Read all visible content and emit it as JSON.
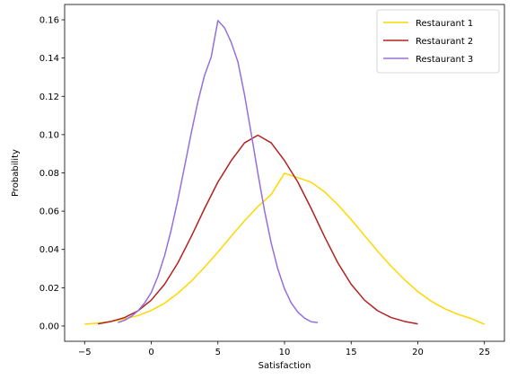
{
  "chart_data": {
    "type": "line",
    "title": "",
    "xlabel": "Satisfaction",
    "ylabel": "Probability",
    "xlim": [
      -6.5,
      26.5
    ],
    "ylim": [
      -0.008,
      0.168
    ],
    "xticks": [
      -5,
      0,
      5,
      10,
      15,
      20,
      25
    ],
    "xtick_labels": [
      "−5",
      "0",
      "5",
      "10",
      "15",
      "20",
      "25"
    ],
    "yticks": [
      0.0,
      0.02,
      0.04,
      0.06,
      0.08,
      0.1,
      0.12,
      0.14,
      0.16
    ],
    "ytick_labels": [
      "0.00",
      "0.02",
      "0.04",
      "0.06",
      "0.08",
      "0.10",
      "0.12",
      "0.14",
      "0.16"
    ],
    "grid": false,
    "legend_position": "top-right",
    "series": [
      {
        "name": "Restaurant 1",
        "color": "#FFD700",
        "x": [
          -5,
          -4,
          -3,
          -2,
          -1,
          0,
          1,
          2,
          3,
          4,
          5,
          6,
          7,
          8,
          9,
          10,
          11,
          12,
          13,
          14,
          15,
          16,
          17,
          18,
          19,
          20,
          21,
          22,
          23,
          24,
          25
        ],
        "y": [
          0.0009,
          0.0015,
          0.0024,
          0.0037,
          0.0054,
          0.0081,
          0.0119,
          0.0171,
          0.0234,
          0.0307,
          0.0386,
          0.0469,
          0.055,
          0.0624,
          0.0687,
          0.0798,
          0.0775,
          0.0751,
          0.0701,
          0.0634,
          0.0556,
          0.0473,
          0.039,
          0.0312,
          0.0242,
          0.018,
          0.013,
          0.0091,
          0.0061,
          0.0039,
          0.0009
        ]
      },
      {
        "name": "Restaurant 2",
        "color": "#B22222",
        "x": [
          -4,
          -3,
          -2,
          -1,
          0,
          1,
          2,
          3,
          4,
          5,
          6,
          7,
          8,
          9,
          10,
          11,
          12,
          13,
          14,
          15,
          16,
          17,
          18,
          19,
          20
        ],
        "y": [
          0.0011,
          0.0024,
          0.0044,
          0.0079,
          0.0135,
          0.0218,
          0.033,
          0.0467,
          0.0614,
          0.0752,
          0.0864,
          0.0957,
          0.0997,
          0.0957,
          0.0864,
          0.0752,
          0.0614,
          0.0467,
          0.033,
          0.0218,
          0.0135,
          0.0079,
          0.0044,
          0.0024,
          0.0011
        ]
      },
      {
        "name": "Restaurant 3",
        "color": "#9370DB",
        "x": [
          -2.5,
          -2,
          -1.5,
          -1,
          -0.5,
          0,
          0.5,
          1,
          1.5,
          2,
          2.5,
          3,
          3.5,
          4,
          4.5,
          5,
          5.5,
          6,
          6.5,
          7,
          7.5,
          8,
          8.5,
          9,
          9.5,
          10,
          10.5,
          11,
          11.5,
          12,
          12.5
        ],
        "y": [
          0.0018,
          0.003,
          0.005,
          0.0079,
          0.012,
          0.0175,
          0.0259,
          0.0368,
          0.0503,
          0.0661,
          0.0833,
          0.1008,
          0.1172,
          0.131,
          0.1406,
          0.1596,
          0.1558,
          0.1482,
          0.1381,
          0.1208,
          0.1006,
          0.0798,
          0.0602,
          0.0433,
          0.0297,
          0.0194,
          0.0121,
          0.0072,
          0.0041,
          0.0022,
          0.0018
        ]
      }
    ]
  }
}
